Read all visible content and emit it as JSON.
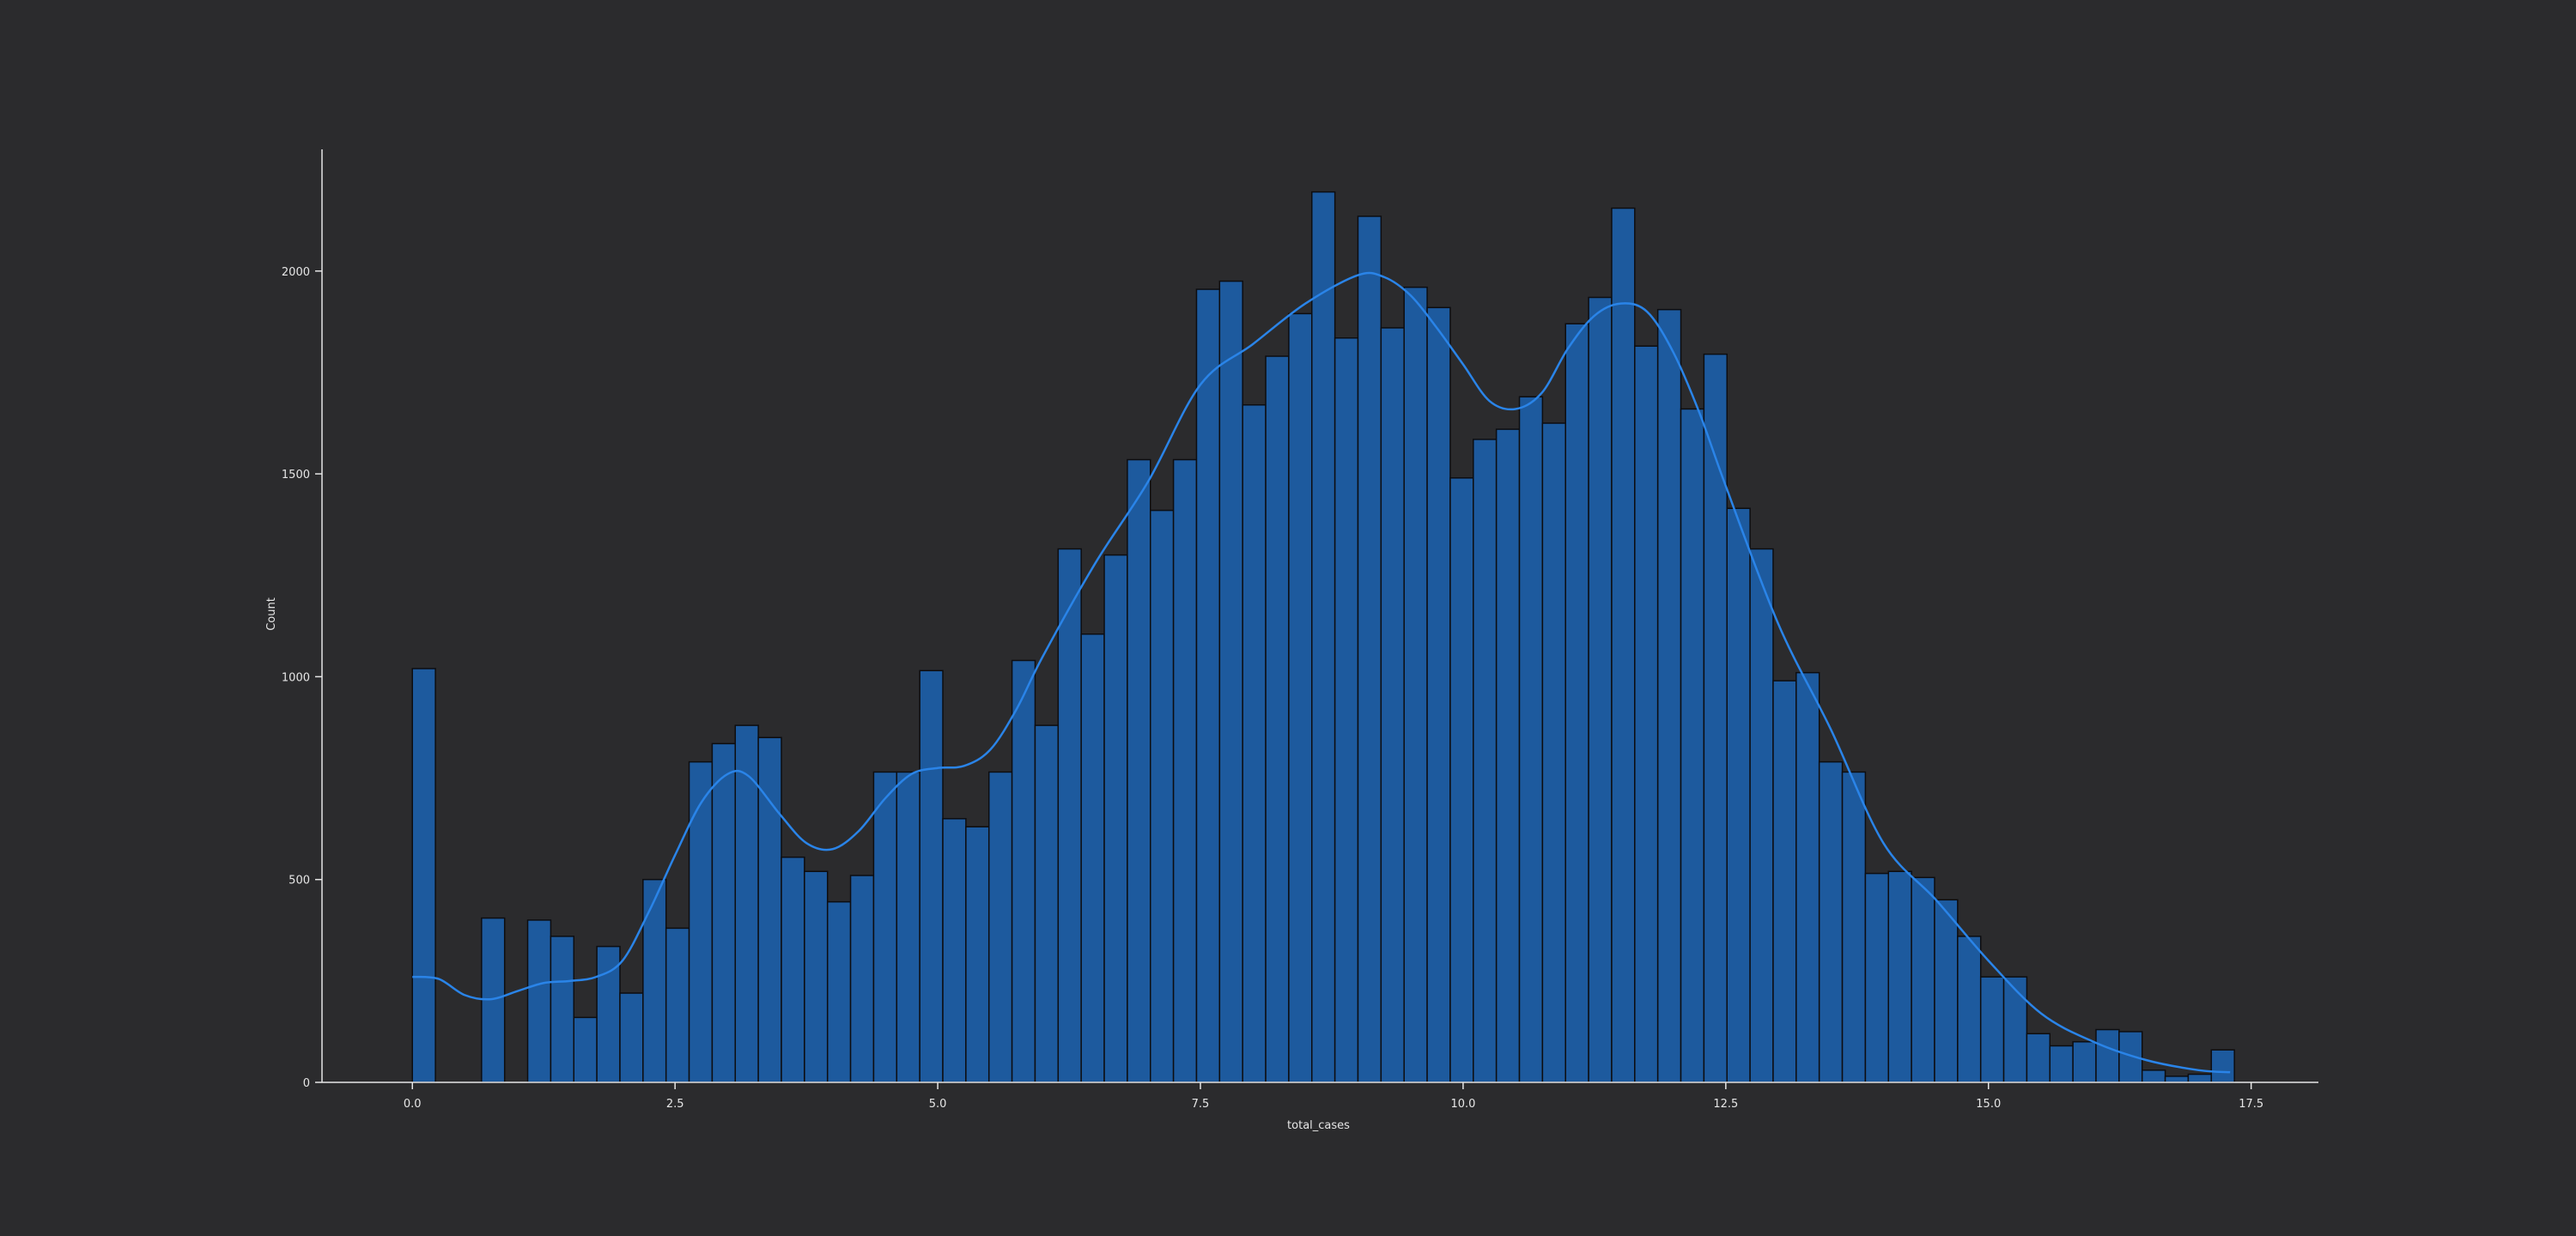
{
  "chart_data": {
    "type": "bar",
    "xlabel": "total_cases",
    "ylabel": "Count",
    "xlim": [
      -0.86,
      18.14
    ],
    "ylim": [
      0,
      2300
    ],
    "x_ticks": [
      0.0,
      2.5,
      5.0,
      7.5,
      10.0,
      12.5,
      15.0,
      17.5
    ],
    "x_tick_labels": [
      "0.0",
      "2.5",
      "5.0",
      "7.5",
      "10.0",
      "12.5",
      "15.0",
      "17.5"
    ],
    "y_ticks": [
      0,
      500,
      1000,
      1500,
      2000
    ],
    "y_tick_labels": [
      "0",
      "500",
      "1000",
      "1500",
      "2000"
    ],
    "grid": false,
    "bins": {
      "start": 0.0,
      "width": 0.2195
    },
    "values": [
      1020,
      0,
      0,
      405,
      0,
      400,
      360,
      160,
      335,
      220,
      500,
      380,
      790,
      835,
      880,
      850,
      555,
      520,
      445,
      510,
      765,
      765,
      1015,
      650,
      630,
      765,
      1040,
      880,
      1315,
      1105,
      1300,
      1535,
      1410,
      1535,
      1955,
      1975,
      1670,
      1790,
      1895,
      2195,
      1835,
      2135,
      1860,
      1960,
      1910,
      1490,
      1585,
      1610,
      1690,
      1625,
      1870,
      1935,
      2155,
      1815,
      1905,
      1660,
      1795,
      1415,
      1315,
      990,
      1010,
      790,
      765,
      515,
      520,
      505,
      450,
      360,
      260,
      260,
      120,
      90,
      100,
      130,
      125,
      30,
      15,
      20,
      80
    ],
    "kde": {
      "x": [
        0.0,
        0.25,
        0.5,
        0.75,
        1.0,
        1.25,
        1.5,
        1.75,
        2.0,
        2.25,
        2.5,
        2.75,
        3.0,
        3.2,
        3.5,
        3.75,
        4.0,
        4.25,
        4.5,
        4.75,
        5.0,
        5.25,
        5.5,
        5.75,
        6.0,
        6.5,
        7.0,
        7.5,
        8.0,
        8.5,
        9.0,
        9.25,
        9.5,
        9.75,
        10.0,
        10.25,
        10.5,
        10.75,
        11.0,
        11.25,
        11.5,
        11.75,
        12.0,
        12.25,
        12.5,
        13.0,
        13.5,
        14.0,
        14.5,
        15.0,
        15.5,
        16.0,
        16.5,
        17.0,
        17.3
      ],
      "y": [
        260,
        255,
        215,
        205,
        225,
        245,
        250,
        260,
        300,
        420,
        560,
        690,
        760,
        755,
        660,
        590,
        575,
        620,
        700,
        760,
        775,
        780,
        820,
        920,
        1050,
        1280,
        1480,
        1720,
        1820,
        1920,
        1990,
        1985,
        1940,
        1860,
        1770,
        1680,
        1660,
        1700,
        1810,
        1890,
        1920,
        1900,
        1800,
        1650,
        1470,
        1130,
        870,
        590,
        450,
        300,
        170,
        100,
        55,
        30,
        25
      ]
    },
    "colors": {
      "bar_fill": "#1d5a9e",
      "bar_edge": "#0d0d10",
      "kde_line": "#2a84e8",
      "axis": "#e6e6e6",
      "background": "#2b2b2d"
    }
  }
}
